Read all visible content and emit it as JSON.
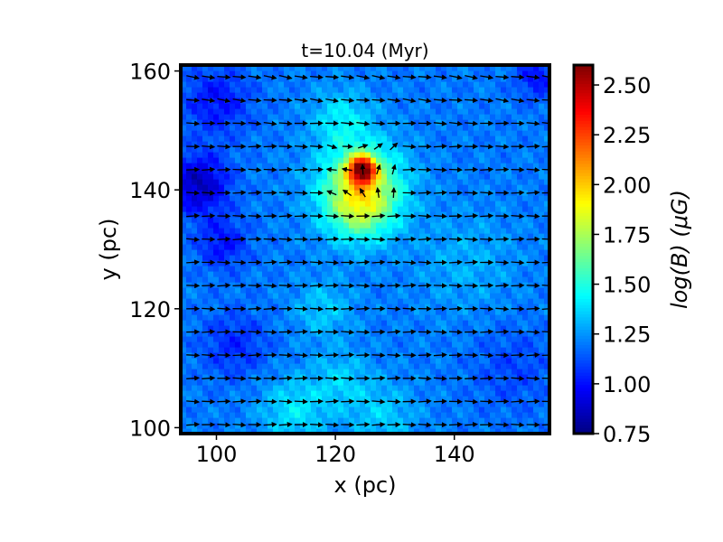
{
  "chart_data": {
    "type": "heatmap",
    "title": "t=10.04 (Myr)",
    "xlabel": "x (pc)",
    "ylabel": "y (pc)",
    "xlim": [
      94,
      156
    ],
    "ylim": [
      99,
      161
    ],
    "xticks": [
      100,
      120,
      140
    ],
    "xtick_labels": [
      "100",
      "120",
      "140"
    ],
    "yticks": [
      100,
      120,
      140,
      160
    ],
    "ytick_labels": [
      "100",
      "120",
      "140",
      "160"
    ],
    "colorbar": {
      "label": "log(B) (μG)",
      "vmin": 0.75,
      "vmax": 2.6,
      "ticks": [
        0.75,
        1.0,
        1.25,
        1.5,
        1.75,
        2.0,
        2.25,
        2.5
      ],
      "tick_labels": [
        "0.75",
        "1.00",
        "1.25",
        "1.50",
        "1.75",
        "2.00",
        "2.25",
        "2.50"
      ],
      "colormap": "jet"
    },
    "field_base": 1.2,
    "features": [
      {
        "name": "core",
        "x": 124.5,
        "y": 143.5,
        "value": 2.3,
        "sigma": 1.6
      },
      {
        "name": "core-halo",
        "x": 124.5,
        "y": 141,
        "value": 1.7,
        "sigma": 5
      },
      {
        "name": "halo-lower",
        "x": 124,
        "y": 137,
        "value": 1.55,
        "sigma": 4
      },
      {
        "name": "filament-upper",
        "x": 121,
        "y": 152,
        "value": 1.4,
        "sigma": 3.5
      },
      {
        "name": "filament-lower-1",
        "x": 118,
        "y": 120,
        "value": 1.35,
        "sigma": 3.5
      },
      {
        "name": "filament-lower-2",
        "x": 121,
        "y": 108,
        "value": 1.35,
        "sigma": 3.5
      },
      {
        "name": "bottom-left-bright",
        "x": 113,
        "y": 103,
        "value": 1.4,
        "sigma": 4
      },
      {
        "name": "bottom-bright",
        "x": 128,
        "y": 102,
        "value": 1.35,
        "sigma": 4
      },
      {
        "name": "right-band",
        "x": 142,
        "y": 128,
        "value": 1.3,
        "sigma": 6
      },
      {
        "name": "void-upper-left",
        "x": 97,
        "y": 141,
        "value": 0.85,
        "sigma": 3.5
      },
      {
        "name": "void-top-left",
        "x": 100,
        "y": 155,
        "value": 1.0,
        "sigma": 4
      },
      {
        "name": "void-top-right",
        "x": 154,
        "y": 159,
        "value": 1.0,
        "sigma": 2.5
      },
      {
        "name": "void-left-mid",
        "x": 101,
        "y": 131,
        "value": 1.0,
        "sigma": 3
      },
      {
        "name": "void-left-low",
        "x": 103,
        "y": 114,
        "value": 1.05,
        "sigma": 4
      },
      {
        "name": "void-right-low",
        "x": 150,
        "y": 110,
        "value": 1.1,
        "sigma": 5
      }
    ],
    "vectors": {
      "x_start": 96,
      "x_step": 2.6,
      "y_start": 100.5,
      "y_step": 3.9,
      "direction": "mostly +x with perturbations near core",
      "color": "#000000"
    }
  }
}
